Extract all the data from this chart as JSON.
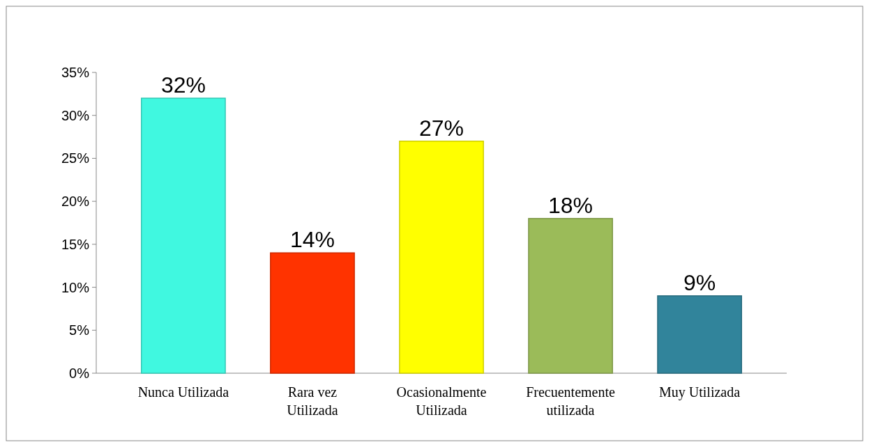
{
  "chart_data": {
    "type": "bar",
    "categories": [
      "Nunca Utilizada",
      "Rara vez Utilizada",
      "Ocasionalmente Utilizada",
      "Frecuentemente utilizada",
      "Muy Utilizada"
    ],
    "values": [
      32,
      14,
      27,
      18,
      9
    ],
    "colors": [
      "#40f8e0",
      "#ff3300",
      "#ffff00",
      "#9bbb59",
      "#31849b"
    ],
    "value_labels": [
      "32%",
      "14%",
      "27%",
      "18%",
      "9%"
    ],
    "ylim": [
      0,
      35
    ],
    "yticks": [
      {
        "value": 0,
        "label": "0%"
      },
      {
        "value": 5,
        "label": "5%"
      },
      {
        "value": 10,
        "label": "10%"
      },
      {
        "value": 15,
        "label": "15%"
      },
      {
        "value": 20,
        "label": "20%"
      },
      {
        "value": 25,
        "label": "25%"
      },
      {
        "value": 30,
        "label": "30%"
      },
      {
        "value": 35,
        "label": "35%"
      }
    ]
  }
}
